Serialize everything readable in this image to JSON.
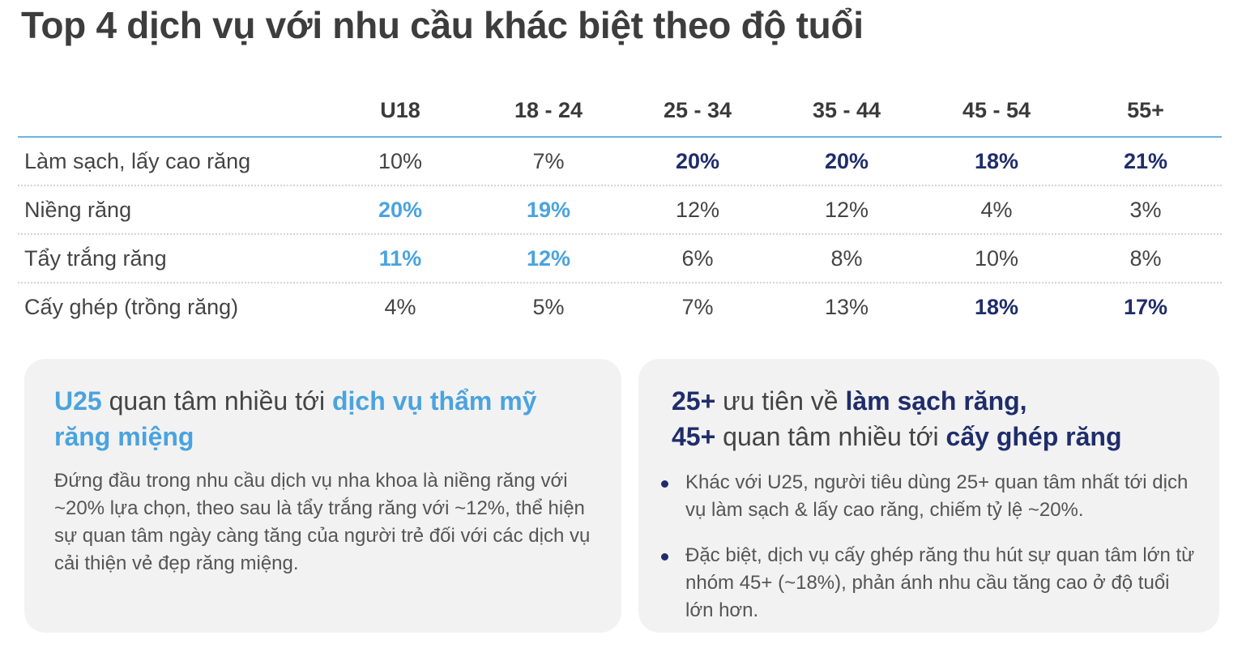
{
  "title": "Top 4 dịch vụ với nhu cầu khác biệt theo độ tuổi",
  "table": {
    "columns": [
      "U18",
      "18 - 24",
      "25 - 34",
      "35 - 44",
      "45 - 54",
      "55+"
    ],
    "rows": [
      {
        "label": "Làm sạch, lấy cao răng",
        "values": [
          "10%",
          "7%",
          "20%",
          "20%",
          "18%",
          "21%"
        ]
      },
      {
        "label": "Niềng răng",
        "values": [
          "20%",
          "19%",
          "12%",
          "12%",
          "4%",
          "3%"
        ]
      },
      {
        "label": "Tẩy trắng răng",
        "values": [
          "11%",
          "12%",
          "6%",
          "8%",
          "10%",
          "8%"
        ]
      },
      {
        "label": "Cấy ghép (trồng răng)",
        "values": [
          "4%",
          "5%",
          "7%",
          "13%",
          "18%",
          "17%"
        ]
      }
    ]
  },
  "colors": {
    "highlight_light_blue": "#4aa3df",
    "highlight_navy": "#1f2d6b",
    "rule_blue": "#6fb3e3",
    "card_bg": "#f2f2f2"
  },
  "left_card": {
    "heading_strong_1": "U25",
    "heading_text_1": " quan tâm nhiều tới ",
    "heading_strong_2": "dịch vụ thẩm mỹ răng miệng",
    "body": "Đứng đầu trong nhu cầu dịch vụ nha khoa là niềng răng với ~20% lựa chọn, theo sau là tẩy trắng răng với ~12%, thể hiện sự quan tâm ngày càng tăng của người trẻ đối với các dịch vụ cải thiện vẻ đẹp răng miệng."
  },
  "right_card": {
    "line1_strong_1": "25+",
    "line1_text": " ưu tiên về ",
    "line1_strong_2": "làm sạch răng,",
    "line2_strong_1": "45+",
    "line2_text": " quan tâm nhiều tới ",
    "line2_strong_2": "cấy ghép răng",
    "bullets": [
      "Khác với U25, người tiêu dùng 25+ quan tâm nhất tới dịch vụ làm sạch & lấy cao răng, chiếm tỷ lệ ~20%.",
      "Đặc biệt, dịch vụ cấy ghép răng thu hút sự quan tâm lớn từ nhóm 45+ (~18%), phản ánh nhu cầu tăng cao ở độ tuổi lớn hơn."
    ]
  }
}
